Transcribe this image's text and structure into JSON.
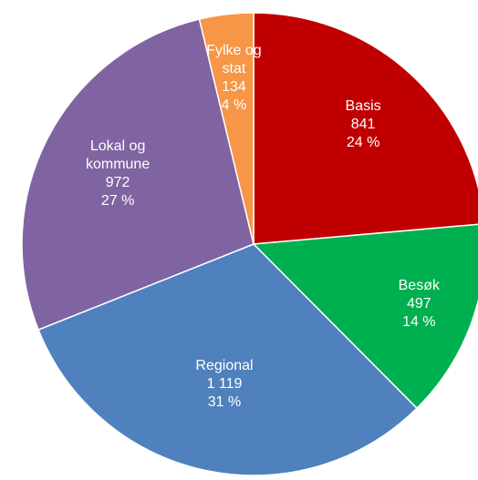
{
  "chart_data": {
    "type": "pie",
    "categories": [
      "Basis",
      "Besøk",
      "Regional",
      "Lokal og kommune",
      "Fylke og stat"
    ],
    "values": [
      841,
      497,
      1119,
      972,
      134
    ],
    "value_labels": [
      "841",
      "497",
      "1 119",
      "972",
      "134"
    ],
    "percent_labels": [
      "24 %",
      "14 %",
      "31 %",
      "27 %",
      "4 %"
    ],
    "colors": [
      "#c00000",
      "#00b050",
      "#4f81bd",
      "#8064a2",
      "#f79646"
    ]
  }
}
